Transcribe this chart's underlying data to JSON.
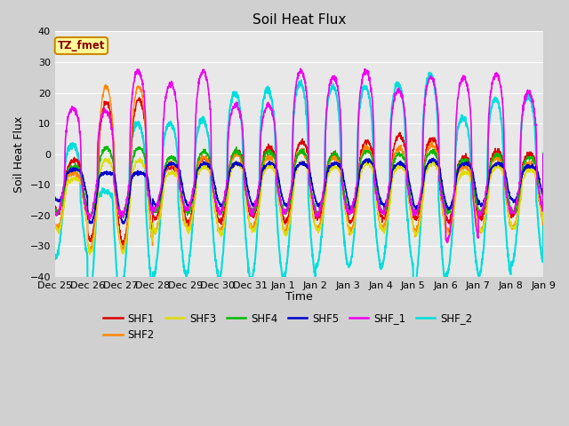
{
  "title": "Soil Heat Flux",
  "xlabel": "Time",
  "ylabel": "Soil Heat Flux",
  "ylim": [
    -40,
    40
  ],
  "yticks": [
    -40,
    -30,
    -20,
    -10,
    0,
    10,
    20,
    30,
    40
  ],
  "xtick_labels": [
    "Dec 25",
    "Dec 26",
    "Dec 27",
    "Dec 28",
    "Dec 29",
    "Dec 30",
    "Dec 31",
    "Jan 1",
    "Jan 2",
    "Jan 3",
    "Jan 4",
    "Jan 5",
    "Jan 6",
    "Jan 7",
    "Jan 8",
    "Jan 9"
  ],
  "series": {
    "SHF1": {
      "color": "#dd0000",
      "lw": 1.0
    },
    "SHF2": {
      "color": "#ff8800",
      "lw": 1.0
    },
    "SHF3": {
      "color": "#dddd00",
      "lw": 1.0
    },
    "SHF4": {
      "color": "#00bb00",
      "lw": 1.0
    },
    "SHF5": {
      "color": "#0000cc",
      "lw": 1.2
    },
    "SHF_1": {
      "color": "#ee00ee",
      "lw": 1.2
    },
    "SHF_2": {
      "color": "#00dddd",
      "lw": 1.5
    }
  },
  "legend_label": "TZ_fmet",
  "legend_facecolor": "#ffff99",
  "legend_edgecolor": "#cc8800",
  "fig_facecolor": "#d0d0d0",
  "ax_facecolor": "#e8e8e8",
  "grid_color": "#ffffff",
  "title_fontsize": 11,
  "axis_label_fontsize": 9,
  "tick_fontsize": 8
}
